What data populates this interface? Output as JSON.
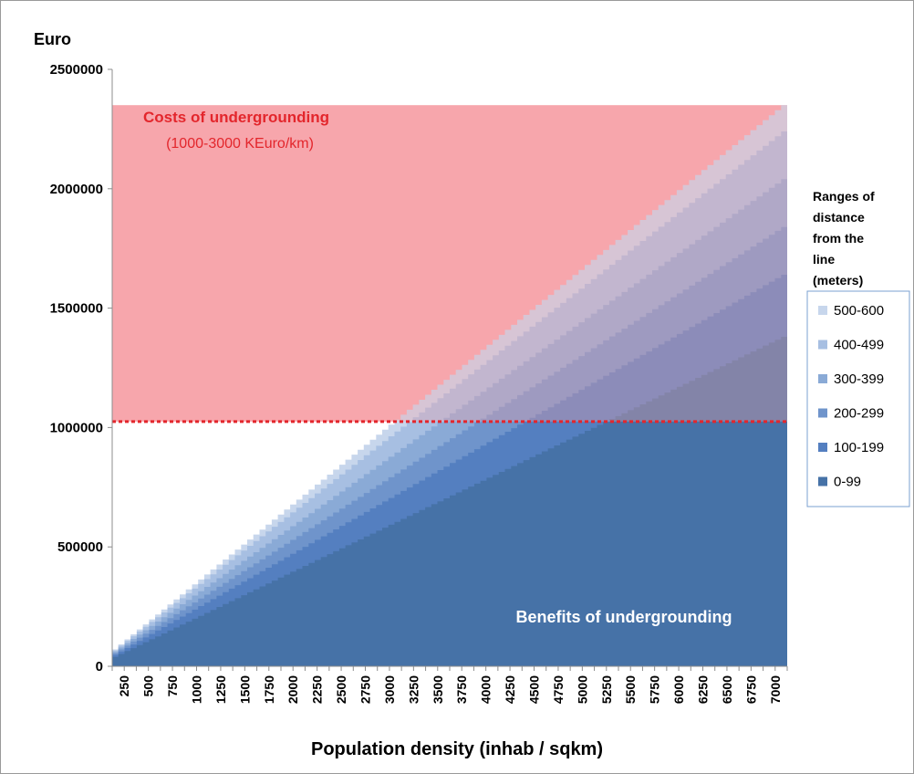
{
  "chart_data": {
    "type": "area",
    "ylabel": "Euro",
    "xlabel": "Population density (inhab / sqkm)",
    "ylim": [
      0,
      2500000
    ],
    "yticks": [
      "0",
      "500000",
      "1000000",
      "1500000",
      "2000000",
      "2500000"
    ],
    "x_categories": [
      "250",
      "500",
      "750",
      "1000",
      "1250",
      "1500",
      "1750",
      "2000",
      "2250",
      "2500",
      "2750",
      "3000",
      "3250",
      "3500",
      "3750",
      "4000",
      "4250",
      "4500",
      "4750",
      "5000",
      "5250",
      "5500",
      "5750",
      "6000",
      "6250",
      "6500",
      "6750",
      "7000"
    ],
    "x_range": [
      200,
      7000
    ],
    "cost_band": {
      "label": "Costs of undergrounding",
      "sublabel": "(1000-3000 KEuro/km)",
      "y_min": 1025000,
      "y_max": 2350000,
      "fill": "#f7a7ac",
      "dash_color": "#e3262c"
    },
    "benefit_label": "Benefits of undergrounding",
    "legend": {
      "title_lines": [
        "Ranges of",
        "distance",
        "from the",
        "line",
        "(meters)"
      ],
      "placement": "right"
    },
    "series": [
      {
        "name": "500-600",
        "color": "#c7d6ec",
        "x": [
          200,
          7000
        ],
        "y": [
          50000,
          2350000
        ]
      },
      {
        "name": "400-499",
        "color": "#a7bfe2",
        "x": [
          200,
          7000
        ],
        "y": [
          46000,
          2240000
        ]
      },
      {
        "name": "300-399",
        "color": "#8aaad6",
        "x": [
          200,
          7000
        ],
        "y": [
          42000,
          2040000
        ]
      },
      {
        "name": "200-299",
        "color": "#6f94cb",
        "x": [
          200,
          7000
        ],
        "y": [
          38000,
          1840000
        ]
      },
      {
        "name": "100-199",
        "color": "#547fc0",
        "x": [
          200,
          7000
        ],
        "y": [
          33000,
          1640000
        ]
      },
      {
        "name": "0-99",
        "color": "#4672a7",
        "x": [
          200,
          7000
        ],
        "y": [
          27000,
          1380000
        ]
      }
    ]
  }
}
